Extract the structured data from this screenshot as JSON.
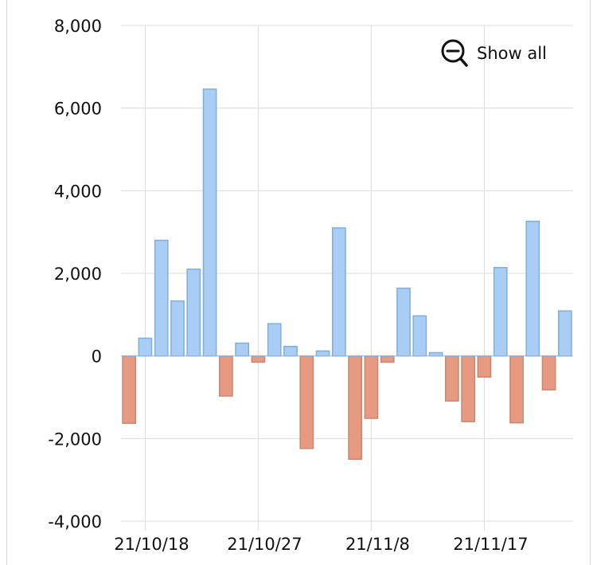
{
  "chart_data": {
    "type": "bar",
    "title": "",
    "xlabel": "",
    "ylabel": "",
    "ylim": [
      -4000,
      8000
    ],
    "y_ticks": [
      -4000,
      -2000,
      0,
      2000,
      4000,
      6000,
      8000
    ],
    "y_tick_labels": [
      "-4,000",
      "-2,000",
      "0",
      "2,000",
      "4,000",
      "6,000",
      "8,000"
    ],
    "x_tick_labels": [
      "21/10/18",
      "21/10/27",
      "21/11/8",
      "21/11/17"
    ],
    "grid": true,
    "colors": {
      "positive": "#a9cdf5",
      "positive_stroke": "#7fb0dc",
      "negative": "#e79a82",
      "negative_stroke": "#c98770",
      "grid": "#dcdcdc"
    },
    "values": [
      -1630,
      430,
      2800,
      1330,
      2100,
      6460,
      -970,
      310,
      -150,
      780,
      230,
      -2240,
      120,
      3100,
      -2500,
      -1510,
      -150,
      1640,
      970,
      80,
      -1090,
      -1590,
      -510,
      2140,
      -1620,
      3260,
      -820,
      1090
    ]
  },
  "controls": {
    "show_all_label": "Show all",
    "show_all_icon": "zoom-out-icon"
  }
}
